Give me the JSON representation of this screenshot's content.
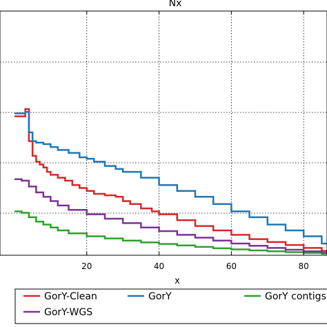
{
  "chart_data": {
    "type": "line",
    "title": "Nx",
    "xlabel": "x",
    "ylabel": "",
    "xlim": [
      0,
      90
    ],
    "xticks": [
      20,
      40,
      60,
      80
    ],
    "grid": true,
    "legend_position": "bottom",
    "series": [
      {
        "name": "GorY-Clean",
        "color": "#d62728",
        "x": [
          0,
          2,
          3,
          4,
          5,
          6,
          7,
          8,
          9,
          10,
          12,
          14,
          16,
          18,
          20,
          22,
          25,
          28,
          30,
          32,
          35,
          38,
          40,
          45,
          50,
          55,
          60,
          65,
          70,
          75,
          80,
          85,
          90
        ],
        "y": [
          0.95,
          0.95,
          1.0,
          0.78,
          0.68,
          0.64,
          0.62,
          0.6,
          0.57,
          0.55,
          0.53,
          0.51,
          0.48,
          0.46,
          0.44,
          0.42,
          0.41,
          0.4,
          0.37,
          0.35,
          0.32,
          0.3,
          0.28,
          0.24,
          0.2,
          0.17,
          0.14,
          0.11,
          0.09,
          0.07,
          0.05,
          0.03,
          0.015
        ]
      },
      {
        "name": "GorY",
        "color": "#1f77b4",
        "x": [
          0,
          2,
          3,
          4,
          5,
          6,
          8,
          10,
          12,
          15,
          18,
          20,
          22,
          25,
          28,
          30,
          35,
          40,
          45,
          50,
          55,
          60,
          65,
          70,
          75,
          80,
          85,
          90
        ],
        "y": [
          0.97,
          0.97,
          0.98,
          0.84,
          0.78,
          0.77,
          0.76,
          0.74,
          0.72,
          0.7,
          0.67,
          0.66,
          0.64,
          0.61,
          0.59,
          0.57,
          0.53,
          0.48,
          0.44,
          0.4,
          0.35,
          0.3,
          0.26,
          0.21,
          0.17,
          0.13,
          0.08,
          0.04
        ]
      },
      {
        "name": "GorY contigs",
        "color": "#2ca02c",
        "x": [
          0,
          2,
          4,
          6,
          8,
          10,
          12,
          15,
          20,
          25,
          30,
          35,
          40,
          45,
          50,
          55,
          60,
          65,
          70,
          75,
          80,
          85,
          90
        ],
        "y": [
          0.3,
          0.29,
          0.26,
          0.23,
          0.21,
          0.19,
          0.17,
          0.15,
          0.13,
          0.115,
          0.1,
          0.088,
          0.077,
          0.067,
          0.057,
          0.048,
          0.04,
          0.033,
          0.027,
          0.021,
          0.016,
          0.011,
          0.007
        ]
      },
      {
        "name": "GorY-WGS",
        "color": "#7b3294",
        "x": [
          0,
          2,
          4,
          6,
          8,
          10,
          12,
          15,
          20,
          25,
          30,
          35,
          40,
          45,
          50,
          55,
          60,
          65,
          70,
          75,
          80,
          85,
          90
        ],
        "y": [
          0.52,
          0.51,
          0.47,
          0.43,
          0.4,
          0.37,
          0.34,
          0.31,
          0.28,
          0.25,
          0.22,
          0.19,
          0.165,
          0.14,
          0.12,
          0.1,
          0.08,
          0.065,
          0.05,
          0.038,
          0.027,
          0.017,
          0.01
        ]
      }
    ]
  }
}
